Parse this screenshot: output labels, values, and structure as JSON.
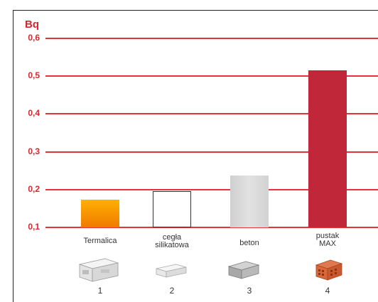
{
  "chart_data": {
    "type": "bar",
    "ylabel": "Bq",
    "ylim": [
      0.1,
      0.6
    ],
    "yticks": [
      "0,1",
      "0,2",
      "0,3",
      "0,4",
      "0,5",
      "0,6"
    ],
    "categories": [
      {
        "label": "Termalica",
        "number": "1"
      },
      {
        "label": "cegła\nsilikatowa",
        "number": "2"
      },
      {
        "label": "beton",
        "number": "3"
      },
      {
        "label": "pustak\nMAX",
        "number": "4"
      }
    ],
    "values": [
      0.174,
      0.195,
      0.237,
      0.515
    ],
    "bar_styles": [
      "orange-gradient",
      "outline",
      "light-grey",
      "crimson"
    ],
    "colors": {
      "accent": "#d9262e",
      "orange_top": "#ffb000",
      "orange_bottom": "#f07a00",
      "grey": "#d7d7d7",
      "crimson": "#c0283a"
    }
  },
  "material_icons": [
    "aerated-block-icon",
    "silicate-brick-icon",
    "concrete-block-icon",
    "clay-hollow-block-icon"
  ]
}
